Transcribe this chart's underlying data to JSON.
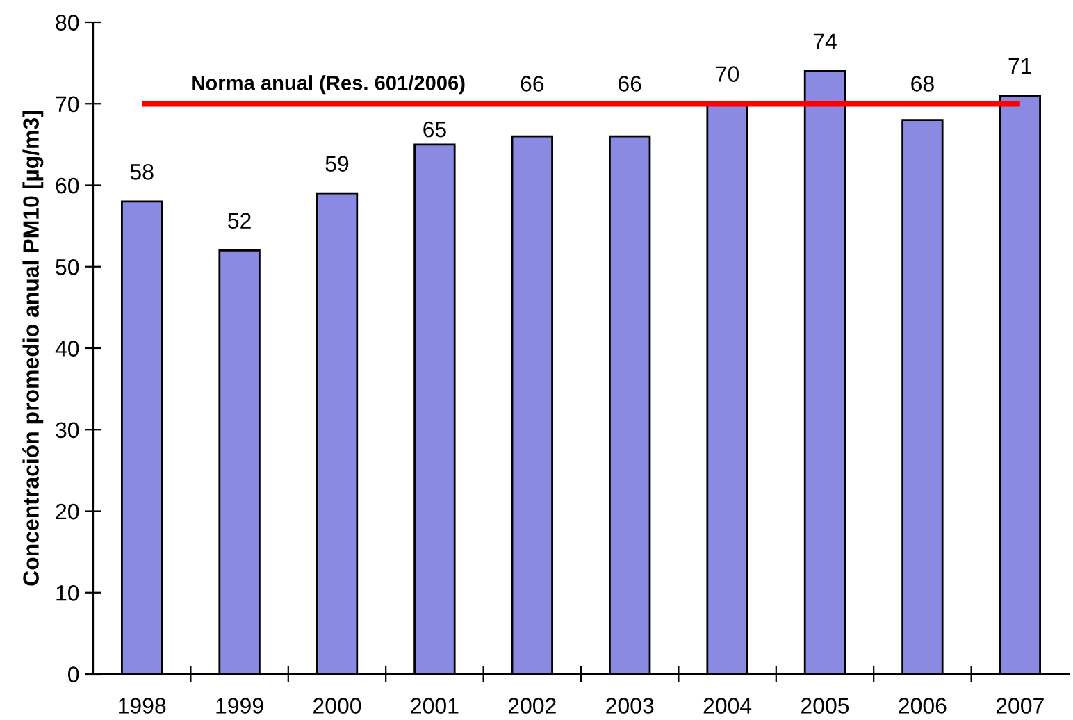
{
  "chart_data": {
    "type": "bar",
    "ylabel": "Concentración promedio anual PM10 [µg/m3]",
    "categories": [
      "1998",
      "1999",
      "2000",
      "2001",
      "2002",
      "2003",
      "2004",
      "2005",
      "2006",
      "2007"
    ],
    "values": [
      58,
      52,
      59,
      65,
      66,
      66,
      70,
      74,
      68,
      71
    ],
    "color": "#8a8ae2",
    "ylim": [
      0,
      80
    ],
    "yticks": [
      0,
      10,
      20,
      30,
      40,
      50,
      60,
      70,
      80
    ],
    "ref_lines": [
      {
        "axis": "y",
        "value": 70,
        "label": "Norma anual (Res. 601/2006)",
        "color": "#ff0000"
      }
    ],
    "data_labels": true
  }
}
